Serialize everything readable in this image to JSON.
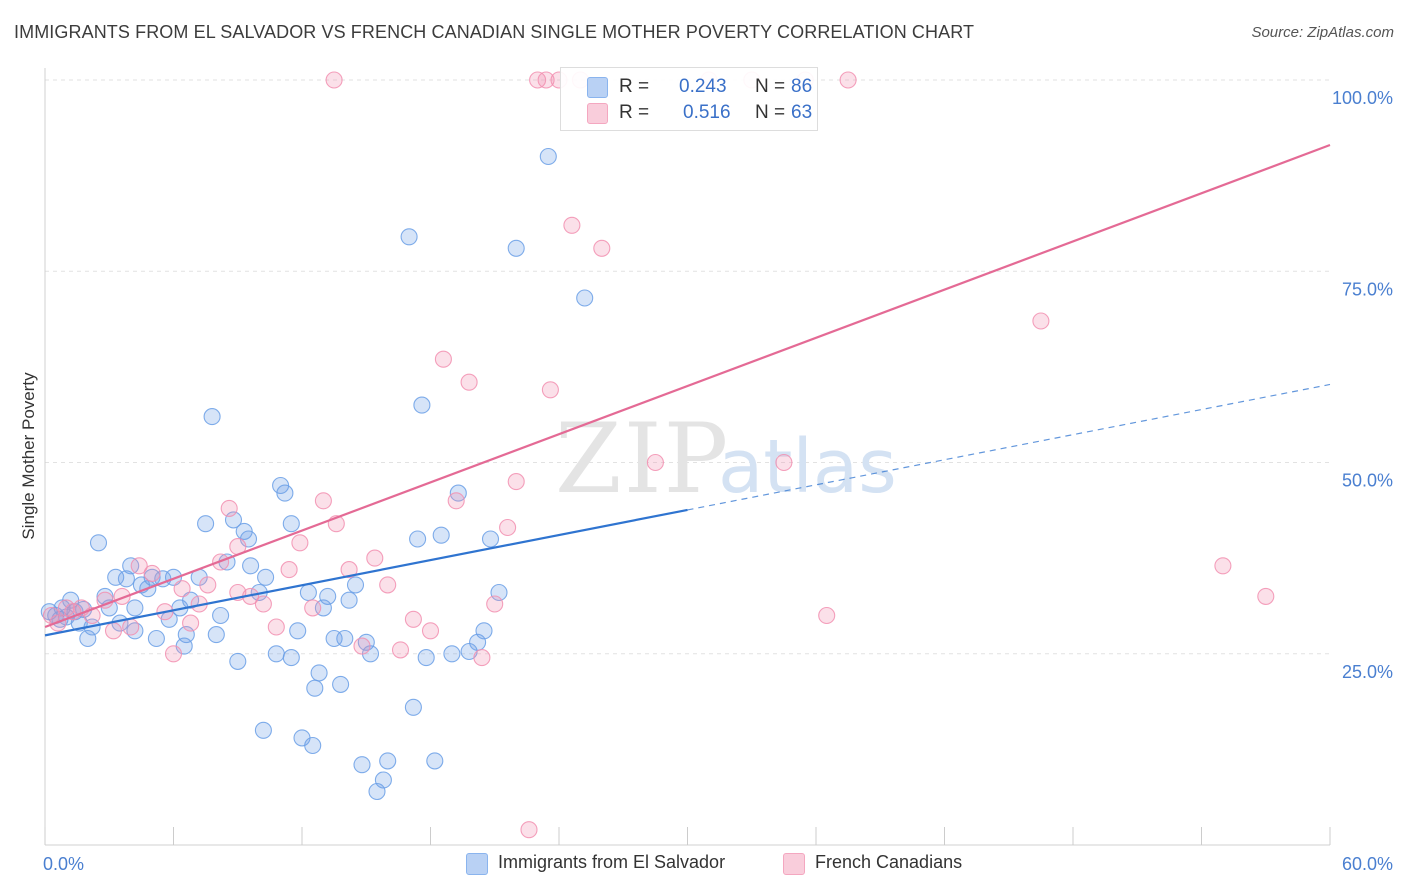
{
  "title": "IMMIGRANTS FROM EL SALVADOR VS FRENCH CANADIAN SINGLE MOTHER POVERTY CORRELATION CHART",
  "source": "Source: ZipAtlas.com",
  "watermark": {
    "zip": "ZIP",
    "atlas": "atlas"
  },
  "legend": {
    "r_label": "R =",
    "n_label": "N =",
    "rows": [
      {
        "r": "0.243",
        "n": "86",
        "color": "#8ab4ee"
      },
      {
        "r": "0.516",
        "n": "63",
        "color": "#f4a7c0"
      }
    ]
  },
  "bottom_legend": [
    {
      "label": "Immigrants from El Salvador",
      "color": "#8ab4ee"
    },
    {
      "label": "French Canadians",
      "color": "#f4a7c0"
    }
  ],
  "chart_data": {
    "type": "scatter",
    "ylabel": "Single Mother Poverty",
    "xlim": [
      0,
      60
    ],
    "ylim": [
      0,
      100
    ],
    "x_tick_labels": [
      "0.0%",
      "60.0%"
    ],
    "y_tick_labels": [
      "25.0%",
      "50.0%",
      "75.0%",
      "100.0%"
    ],
    "y_ticks": [
      25,
      50,
      75,
      100
    ],
    "grid": true,
    "series": [
      {
        "name": "Immigrants from El Salvador",
        "color": "#6a9fe6",
        "trend": {
          "x0": 0,
          "y0": 27.4,
          "x1": 30,
          "y1": 43.8,
          "dashed_to_x": 60,
          "dashed_to_y": 60.2,
          "color": "#2f74d0"
        },
        "points": [
          [
            0.2,
            30.5
          ],
          [
            0.5,
            30
          ],
          [
            0.7,
            29.5
          ],
          [
            0.8,
            31
          ],
          [
            1.0,
            29.8
          ],
          [
            1.2,
            32
          ],
          [
            1.4,
            30.5
          ],
          [
            1.6,
            29
          ],
          [
            1.8,
            30.8
          ],
          [
            2.0,
            27
          ],
          [
            2.2,
            28.5
          ],
          [
            2.5,
            39.5
          ],
          [
            2.8,
            32.5
          ],
          [
            3.0,
            31
          ],
          [
            3.3,
            35
          ],
          [
            3.5,
            29
          ],
          [
            3.8,
            34.8
          ],
          [
            4.0,
            36.5
          ],
          [
            4.2,
            31
          ],
          [
            4.5,
            34
          ],
          [
            4.8,
            33.5
          ],
          [
            5.0,
            35
          ],
          [
            5.2,
            27
          ],
          [
            5.5,
            34.8
          ],
          [
            5.8,
            29.5
          ],
          [
            6.0,
            35
          ],
          [
            6.3,
            31
          ],
          [
            6.6,
            27.5
          ],
          [
            6.8,
            32
          ],
          [
            7.2,
            35
          ],
          [
            7.5,
            42
          ],
          [
            7.8,
            56
          ],
          [
            8.0,
            27.5
          ],
          [
            8.2,
            30
          ],
          [
            8.5,
            37
          ],
          [
            8.8,
            42.5
          ],
          [
            9.0,
            24
          ],
          [
            9.3,
            41
          ],
          [
            9.6,
            36.5
          ],
          [
            10.0,
            33
          ],
          [
            10.3,
            35
          ],
          [
            10.8,
            25
          ],
          [
            11.0,
            47
          ],
          [
            11.2,
            46
          ],
          [
            11.5,
            42
          ],
          [
            11.8,
            28
          ],
          [
            12.3,
            33
          ],
          [
            12.6,
            20.5
          ],
          [
            12.8,
            22.5
          ],
          [
            13.0,
            31
          ],
          [
            13.2,
            32.5
          ],
          [
            13.5,
            27
          ],
          [
            13.8,
            21
          ],
          [
            14.0,
            27
          ],
          [
            14.2,
            32
          ],
          [
            14.5,
            34
          ],
          [
            14.8,
            10.5
          ],
          [
            15.0,
            26.5
          ],
          [
            15.5,
            7
          ],
          [
            15.8,
            8.5
          ],
          [
            16.0,
            11
          ],
          [
            17.0,
            79.5
          ],
          [
            17.2,
            18
          ],
          [
            17.4,
            40
          ],
          [
            17.6,
            57.5
          ],
          [
            17.8,
            24.5
          ],
          [
            18.2,
            11
          ],
          [
            18.5,
            40.5
          ],
          [
            19.0,
            25
          ],
          [
            19.3,
            46
          ],
          [
            19.8,
            25.3
          ],
          [
            20.2,
            26.5
          ],
          [
            20.5,
            28
          ],
          [
            20.8,
            40
          ],
          [
            21.2,
            33
          ],
          [
            22.0,
            78
          ],
          [
            23.5,
            90
          ],
          [
            25.2,
            71.5
          ],
          [
            10.2,
            15
          ],
          [
            11.5,
            24.5
          ],
          [
            9.5,
            40
          ],
          [
            6.5,
            26
          ],
          [
            4.2,
            28
          ],
          [
            15.2,
            25
          ],
          [
            12.0,
            14
          ],
          [
            12.5,
            13
          ]
        ]
      },
      {
        "name": "French Canadians",
        "color": "#f28fb0",
        "trend": {
          "x0": 0,
          "y0": 28.5,
          "x1": 60,
          "y1": 91.5,
          "color": "#e46a95"
        },
        "points": [
          [
            0.3,
            30
          ],
          [
            0.6,
            29
          ],
          [
            1.0,
            31
          ],
          [
            1.3,
            30.5
          ],
          [
            1.7,
            31
          ],
          [
            2.2,
            30
          ],
          [
            2.8,
            32
          ],
          [
            3.2,
            28
          ],
          [
            3.6,
            32.5
          ],
          [
            4.0,
            28.5
          ],
          [
            4.4,
            36.5
          ],
          [
            5.0,
            35.5
          ],
          [
            5.6,
            30.5
          ],
          [
            6.0,
            25
          ],
          [
            6.4,
            33.5
          ],
          [
            6.8,
            29
          ],
          [
            7.2,
            31.5
          ],
          [
            7.6,
            34
          ],
          [
            8.2,
            37
          ],
          [
            8.6,
            44
          ],
          [
            9.0,
            33
          ],
          [
            9.6,
            32.5
          ],
          [
            10.2,
            31.5
          ],
          [
            10.8,
            28.5
          ],
          [
            11.4,
            36
          ],
          [
            11.9,
            39.5
          ],
          [
            12.5,
            31
          ],
          [
            13.0,
            45
          ],
          [
            13.6,
            42
          ],
          [
            14.2,
            36
          ],
          [
            14.8,
            26
          ],
          [
            15.4,
            37.5
          ],
          [
            16.0,
            34
          ],
          [
            16.6,
            25.5
          ],
          [
            17.2,
            29.5
          ],
          [
            18.0,
            28
          ],
          [
            18.6,
            63.5
          ],
          [
            19.2,
            45
          ],
          [
            19.8,
            60.5
          ],
          [
            20.4,
            24.5
          ],
          [
            21.0,
            31.5
          ],
          [
            21.6,
            41.5
          ],
          [
            22.0,
            47.5
          ],
          [
            22.6,
            2
          ],
          [
            23.0,
            100
          ],
          [
            23.4,
            100
          ],
          [
            23.6,
            59.5
          ],
          [
            24.0,
            100
          ],
          [
            24.6,
            81
          ],
          [
            25.0,
            100
          ],
          [
            26.0,
            78
          ],
          [
            28.5,
            50
          ],
          [
            31.0,
            100
          ],
          [
            33.0,
            100
          ],
          [
            34.5,
            50
          ],
          [
            35.5,
            100
          ],
          [
            36.5,
            30
          ],
          [
            37.5,
            100
          ],
          [
            46.5,
            68.5
          ],
          [
            55.0,
            36.5
          ],
          [
            57.0,
            32.5
          ],
          [
            13.5,
            100
          ],
          [
            9.0,
            39
          ]
        ]
      }
    ]
  }
}
